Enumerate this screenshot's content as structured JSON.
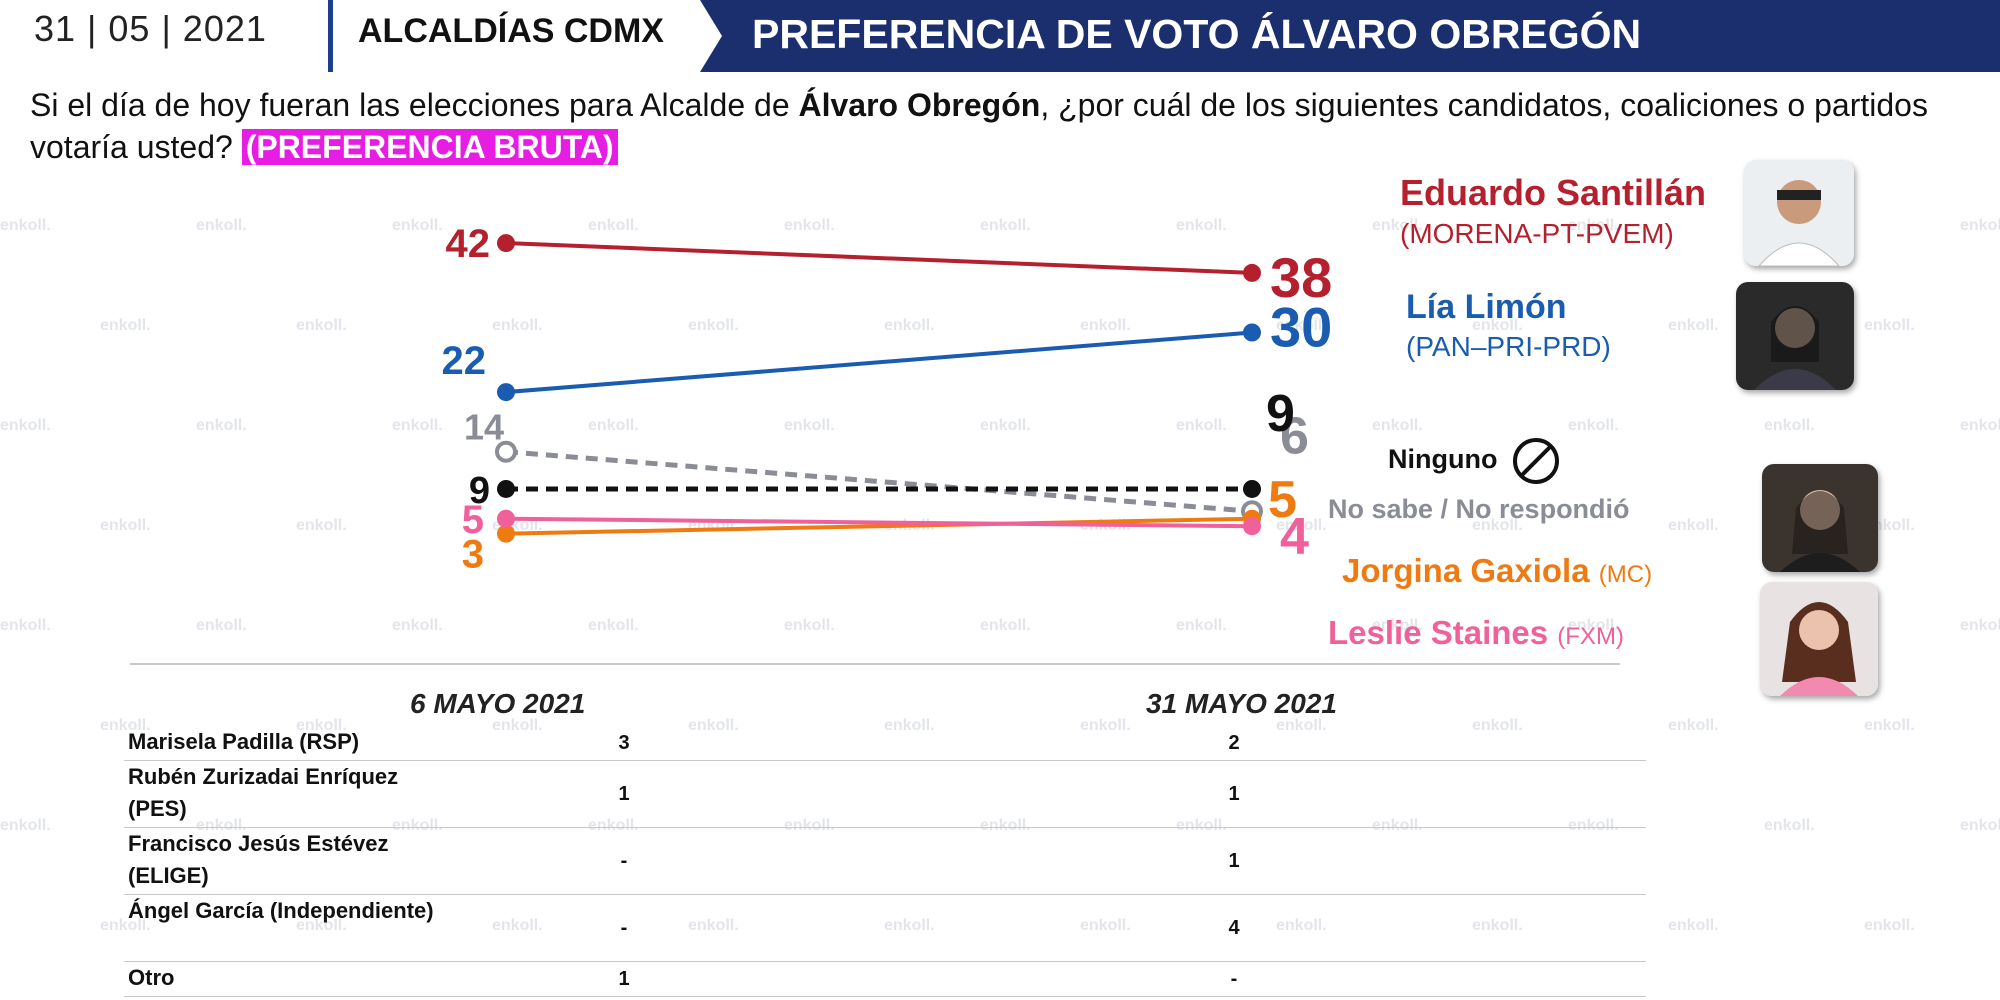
{
  "header": {
    "date": "31 | 05 | 2021",
    "section": "ALCALDÍAS CDMX",
    "title": "PREFERENCIA DE VOTO ÁLVARO OBREGÓN"
  },
  "question": {
    "part1": "Si el día de hoy fueran las elecciones para Alcalde de ",
    "bold": "Álvaro Obregón",
    "part2": ", ¿por cuál de los siguientes candidatos, coaliciones o partidos votaría usted? ",
    "tag": "(PREFERENCIA BRUTA)"
  },
  "watermark": "enkoll.",
  "colors": {
    "morena": "#b5202e",
    "pan": "#1a5cb0",
    "nosabe": "#8a8d96",
    "ninguno": "#111111",
    "mc": "#f07a12",
    "fxm": "#f0609a",
    "banner": "#1b2f6e",
    "tag": "#e81de3"
  },
  "chart_data": {
    "type": "line",
    "categories": [
      "6 MAYO 2021",
      "31 MAYO 2021"
    ],
    "series": [
      {
        "name": "Eduardo Santillán",
        "party": "(MORENA-PT-PVEM)",
        "values": [
          42,
          38
        ],
        "color": "#b5202e",
        "dashed": false,
        "hollow_end": false
      },
      {
        "name": "Lía Limón",
        "party": "(PAN–PRI-PRD)",
        "values": [
          22,
          30
        ],
        "color": "#1a5cb0",
        "dashed": false,
        "hollow_end": false
      },
      {
        "name": "No sabe / No respondió",
        "party": "",
        "values": [
          14,
          6
        ],
        "color": "#8a8d96",
        "dashed": true,
        "hollow_end": true
      },
      {
        "name": "Ninguno",
        "party": "",
        "values": [
          9,
          9
        ],
        "color": "#111111",
        "dashed": true,
        "hollow_end": false
      },
      {
        "name": "Jorgina Gaxiola",
        "party": "(MC)",
        "values": [
          3,
          5
        ],
        "color": "#f07a12",
        "dashed": false,
        "hollow_end": false
      },
      {
        "name": "Leslie Staines",
        "party": "(FXM)",
        "values": [
          5,
          4
        ],
        "color": "#f0609a",
        "dashed": false,
        "hollow_end": false
      }
    ]
  },
  "table": {
    "rows": [
      {
        "name": "Marisela Padilla (RSP)",
        "v1": "3",
        "v2": "2"
      },
      {
        "name": "Rubén Zurizadai Enríquez (PES)",
        "v1": "1",
        "v2": "1"
      },
      {
        "name": "Francisco Jesús Estévez (ELIGE)",
        "v1": "-",
        "v2": "1"
      },
      {
        "name": "Ángel García (Independiente)",
        "v1": "-",
        "v2": "4"
      },
      {
        "name": "Otro",
        "v1": "1",
        "v2": "-"
      }
    ]
  }
}
